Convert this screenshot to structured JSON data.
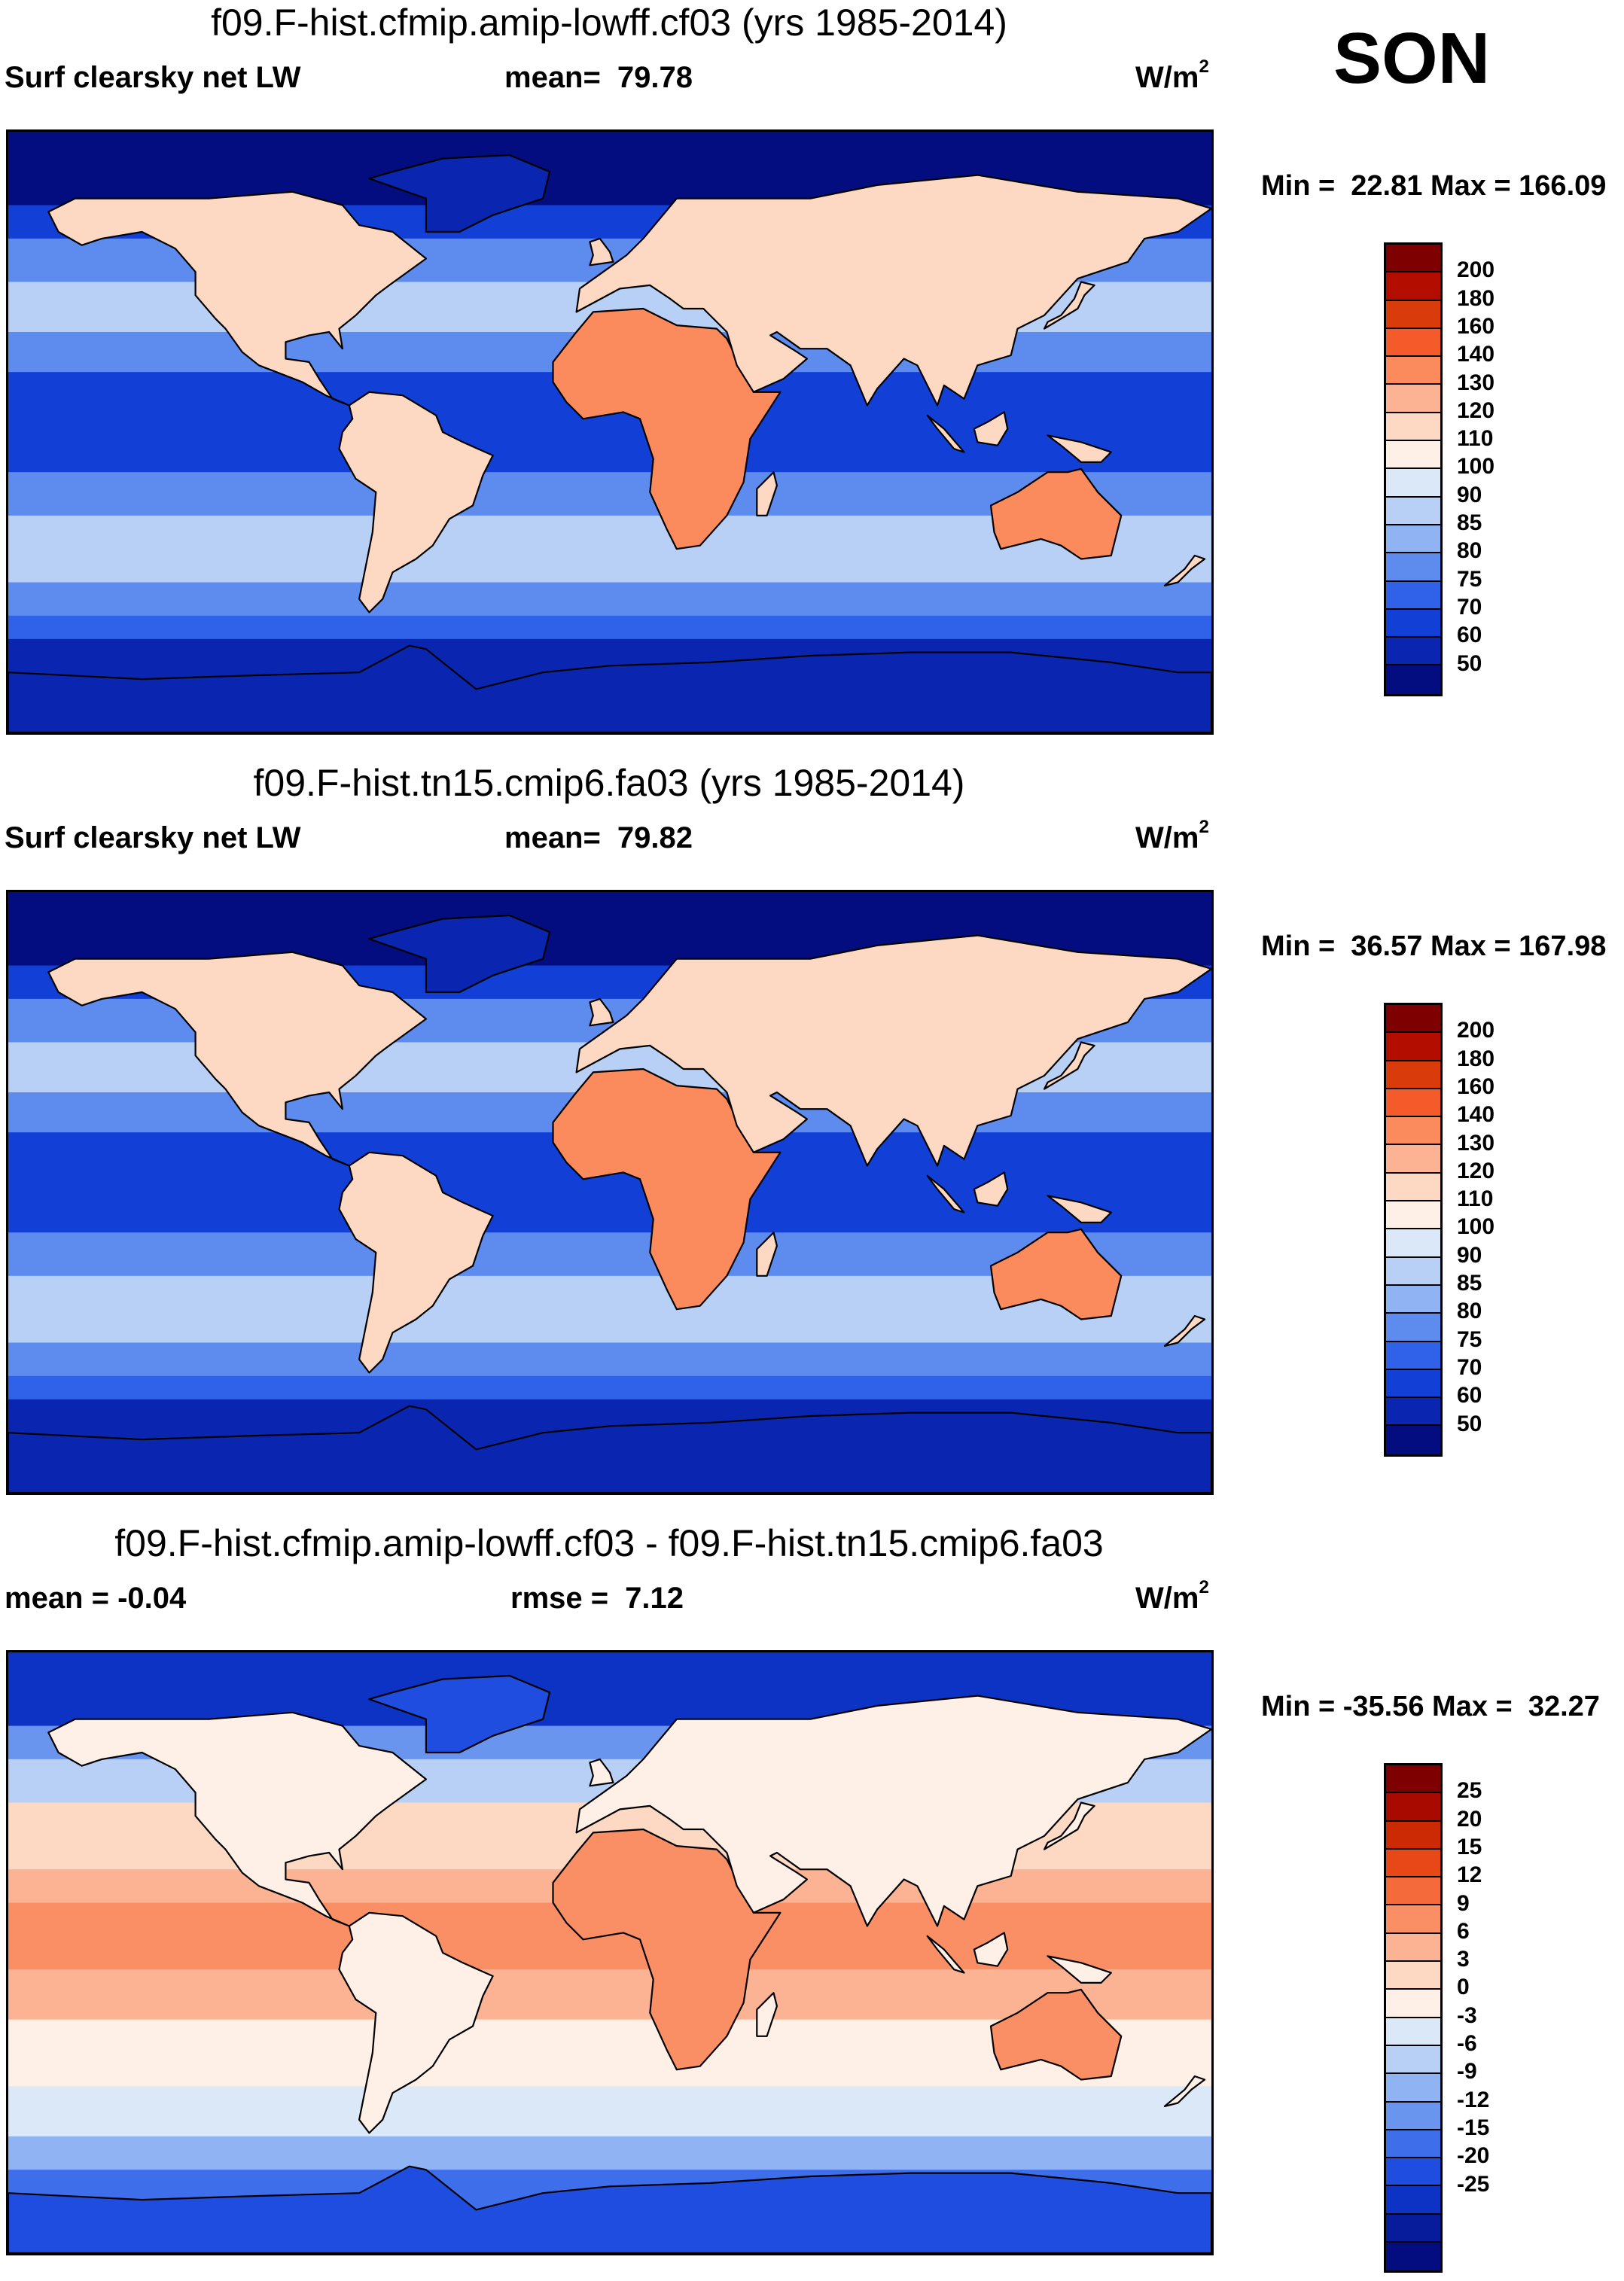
{
  "season": "SON",
  "units_base": "W/m",
  "units_exp": "2",
  "panels": [
    {
      "title": "f09.F-hist.cfmip.amip-lowff.cf03 (yrs 1985-2014)",
      "left_label": "Surf clearsky net LW",
      "mid_label": "mean=",
      "mid_value": "79.78",
      "minmax": "Min =  22.81 Max = 166.09",
      "colorbar": {
        "colors": [
          "#7f0000",
          "#b30d00",
          "#d93b0a",
          "#f45a2a",
          "#fb8a5c",
          "#fcb394",
          "#fdd9c3",
          "#fef0e6",
          "#dbe8f7",
          "#b8d0f5",
          "#8fb3f3",
          "#5d8cee",
          "#2f62e8",
          "#123fd6",
          "#0a26b0",
          "#030d7f"
        ],
        "ticks": [
          "200",
          "180",
          "160",
          "140",
          "130",
          "120",
          "110",
          "100",
          "90",
          "85",
          "80",
          "75",
          "70",
          "60",
          "50"
        ]
      }
    },
    {
      "title": "f09.F-hist.tn15.cmip6.fa03 (yrs 1985-2014)",
      "left_label": "Surf clearsky net LW",
      "mid_label": "mean=",
      "mid_value": "79.82",
      "minmax": "Min =  36.57 Max = 167.98",
      "colorbar": {
        "colors": [
          "#7f0000",
          "#b30d00",
          "#d93b0a",
          "#f45a2a",
          "#fb8a5c",
          "#fcb394",
          "#fdd9c3",
          "#fef0e6",
          "#dbe8f7",
          "#b8d0f5",
          "#8fb3f3",
          "#5d8cee",
          "#2f62e8",
          "#123fd6",
          "#0a26b0",
          "#030d7f"
        ],
        "ticks": [
          "200",
          "180",
          "160",
          "140",
          "130",
          "120",
          "110",
          "100",
          "90",
          "85",
          "80",
          "75",
          "70",
          "60",
          "50"
        ]
      }
    },
    {
      "title": "f09.F-hist.cfmip.amip-lowff.cf03 - f09.F-hist.tn15.cmip6.fa03",
      "left_label": "mean =  -0.04",
      "mid_label": "rmse =",
      "mid_value": "7.12",
      "minmax": "Min = -35.56 Max =  32.27",
      "colorbar": {
        "colors": [
          "#7f0000",
          "#a80a00",
          "#cc2a05",
          "#e84818",
          "#f56a3a",
          "#fa8f66",
          "#fcb394",
          "#fdd9c3",
          "#fef0e6",
          "#dbe8f7",
          "#b8d0f5",
          "#8fb3f3",
          "#6a95ef",
          "#3f6eea",
          "#1f4de0",
          "#0d33c4",
          "#061c9a",
          "#030d7f"
        ],
        "ticks": [
          "25",
          "20",
          "15",
          "12",
          "9",
          "6",
          "3",
          "0",
          "-3",
          "-6",
          "-9",
          "-12",
          "-15",
          "-20",
          "-25"
        ]
      }
    }
  ]
}
